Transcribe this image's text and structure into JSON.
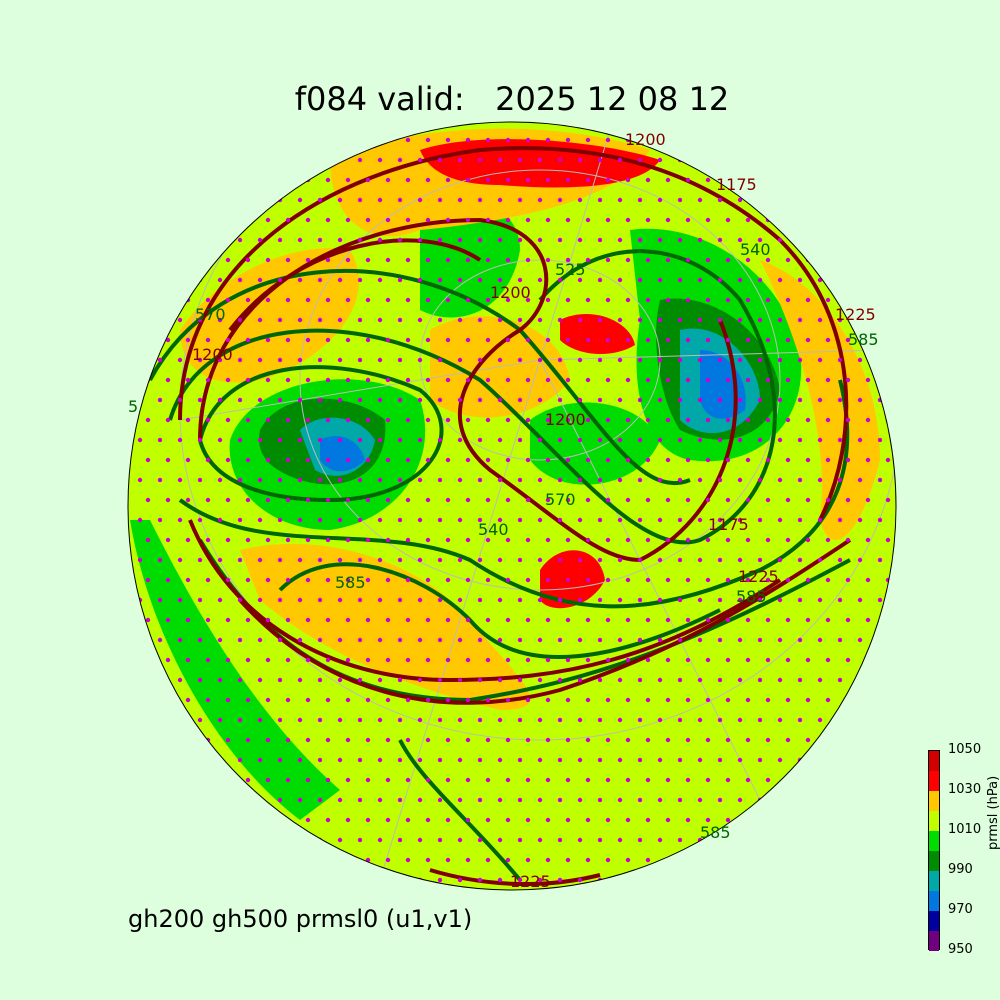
{
  "title": "f084 valid:   2025 12 08 12",
  "subtitle": "gh200 gh500 prmsl0 (u1,v1)",
  "colorbar": {
    "label": "prmsl (hPa)",
    "ticks": [
      "1050",
      "1030",
      "1010",
      "990",
      "970",
      "950"
    ],
    "levels": [
      950,
      960,
      970,
      980,
      990,
      1000,
      1010,
      1020,
      1030,
      1040,
      1050
    ],
    "colors": [
      "#700080",
      "#0000a0",
      "#0078e0",
      "#00a8a8",
      "#008c00",
      "#00dc00",
      "#c0ff00",
      "#ffc800",
      "#ff0000",
      "#d00000"
    ]
  },
  "contour_labels": {
    "gh500": [
      "540",
      "585",
      "570",
      "525",
      "5",
      "540",
      "585",
      "585",
      "570",
      "585"
    ],
    "gh200": [
      "1200",
      "1175",
      "1200",
      "1200",
      "1225",
      "1175",
      "1225",
      "1225",
      "1200"
    ]
  },
  "colors": {
    "gh500_line": "#006600",
    "gh200_line": "#800000",
    "wind_dots": "#cc00cc",
    "background": "#ddffdd"
  }
}
